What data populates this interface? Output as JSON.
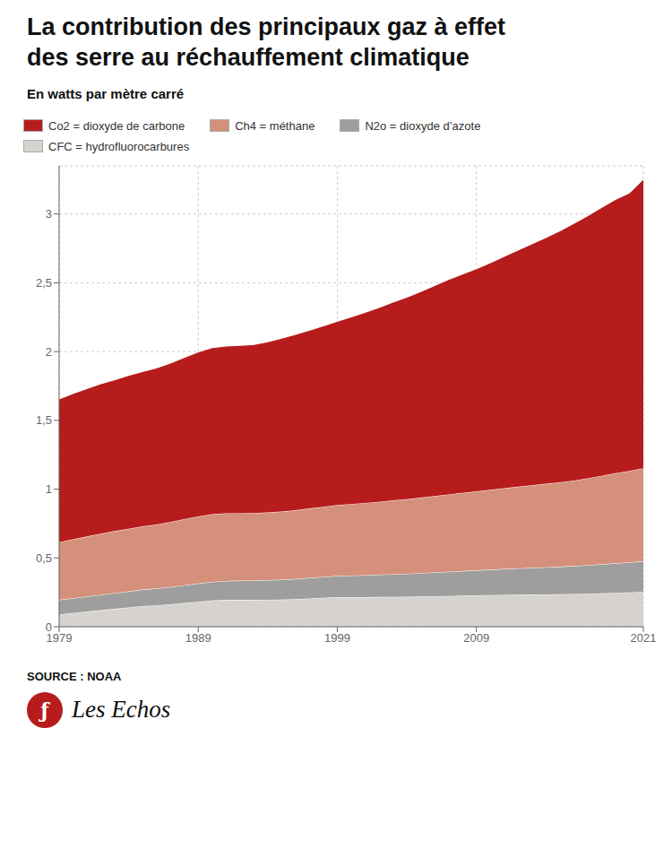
{
  "chart_data": {
    "type": "area",
    "stacked": true,
    "title": "La contribution des principaux gaz à effet\ndes serre au réchauffement climatique",
    "subtitle": "En watts par mètre carré",
    "source": "SOURCE : NOAA",
    "annotations": [
      "ƒ",
      "Les Echos"
    ],
    "x": [
      1979,
      1980,
      1981,
      1982,
      1983,
      1984,
      1985,
      1986,
      1987,
      1988,
      1989,
      1990,
      1991,
      1992,
      1993,
      1994,
      1995,
      1996,
      1997,
      1998,
      1999,
      2000,
      2001,
      2002,
      2003,
      2004,
      2005,
      2006,
      2007,
      2008,
      2009,
      2010,
      2011,
      2012,
      2013,
      2014,
      2015,
      2016,
      2017,
      2018,
      2019,
      2020,
      2021
    ],
    "series": [
      {
        "name": "CFC = hydrofluorocarbures",
        "color": "#d6d3cf",
        "values": [
          0.09,
          0.1,
          0.11,
          0.12,
          0.13,
          0.14,
          0.15,
          0.155,
          0.163,
          0.172,
          0.181,
          0.19,
          0.195,
          0.195,
          0.195,
          0.196,
          0.197,
          0.2,
          0.205,
          0.21,
          0.215,
          0.215,
          0.215,
          0.216,
          0.217,
          0.218,
          0.22,
          0.222,
          0.224,
          0.226,
          0.228,
          0.23,
          0.232,
          0.233,
          0.234,
          0.235,
          0.236,
          0.238,
          0.24,
          0.243,
          0.246,
          0.25,
          0.255
        ]
      },
      {
        "name": "N2o = dioxyde d’azote",
        "color": "#9e9e9e",
        "values": [
          0.105,
          0.107,
          0.11,
          0.112,
          0.115,
          0.117,
          0.12,
          0.123,
          0.126,
          0.13,
          0.133,
          0.136,
          0.138,
          0.14,
          0.141,
          0.143,
          0.145,
          0.147,
          0.15,
          0.152,
          0.155,
          0.157,
          0.16,
          0.162,
          0.165,
          0.167,
          0.17,
          0.173,
          0.176,
          0.179,
          0.182,
          0.185,
          0.188,
          0.191,
          0.194,
          0.197,
          0.2,
          0.203,
          0.207,
          0.211,
          0.215,
          0.218,
          0.222
        ]
      },
      {
        "name": "Ch4 = méthane",
        "color": "#d4907a",
        "values": [
          0.42,
          0.428,
          0.436,
          0.444,
          0.45,
          0.455,
          0.46,
          0.465,
          0.472,
          0.48,
          0.488,
          0.492,
          0.492,
          0.49,
          0.49,
          0.492,
          0.495,
          0.5,
          0.505,
          0.51,
          0.515,
          0.52,
          0.525,
          0.53,
          0.537,
          0.542,
          0.548,
          0.555,
          0.562,
          0.568,
          0.574,
          0.58,
          0.587,
          0.594,
          0.6,
          0.607,
          0.613,
          0.622,
          0.632,
          0.643,
          0.655,
          0.665,
          0.675
        ]
      },
      {
        "name": "Co2 = dioxyde de carbone",
        "color": "#b71c1c",
        "values": [
          1.04,
          1.06,
          1.075,
          1.09,
          1.1,
          1.115,
          1.125,
          1.138,
          1.155,
          1.175,
          1.195,
          1.21,
          1.215,
          1.22,
          1.225,
          1.24,
          1.26,
          1.278,
          1.295,
          1.315,
          1.335,
          1.36,
          1.385,
          1.412,
          1.44,
          1.468,
          1.498,
          1.53,
          1.562,
          1.59,
          1.618,
          1.65,
          1.685,
          1.72,
          1.755,
          1.79,
          1.828,
          1.868,
          1.908,
          1.95,
          1.99,
          2.02,
          2.1
        ]
      }
    ],
    "xlim": [
      1979,
      2021
    ],
    "xticks": [
      1979,
      1989,
      1999,
      2009,
      2021
    ],
    "ylim": [
      0,
      3.35
    ],
    "yticks": [
      0,
      {
        "value": 0.5,
        "label": "0,5"
      },
      1,
      {
        "value": 1.5,
        "label": "1,5"
      },
      2,
      {
        "value": 2.5,
        "label": "2,5"
      },
      3
    ],
    "grid": true,
    "legend": "top"
  }
}
